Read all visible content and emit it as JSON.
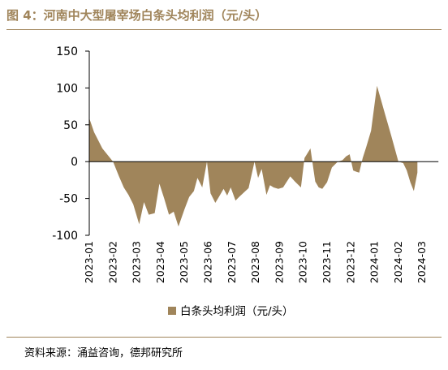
{
  "figure": {
    "label": "图 4：",
    "title": "河南中大型屠宰场白条头均利润（元/头）",
    "source": "资料来源：涌益咨询，德邦研究所"
  },
  "colors": {
    "area": "#a0855b",
    "title": "#a0855b",
    "axis": "#000000"
  },
  "chart_data": {
    "type": "area",
    "title": "河南中大型屠宰场白条头均利润（元/头）",
    "xlabel": "",
    "ylabel": "",
    "ylim": [
      -100,
      150
    ],
    "yticks": [
      150,
      100,
      50,
      0,
      -50,
      -100
    ],
    "categories": [
      "2023-01",
      "2023-02",
      "2023-03",
      "2023-04",
      "2023-05",
      "2023-06",
      "2023-07",
      "2023-08",
      "2023-09",
      "2023-10",
      "2023-11",
      "2023-12",
      "2024-01",
      "2024-02",
      "2024-03"
    ],
    "legend": {
      "position": "bottom",
      "entries": [
        "白条头均利润（元/头）"
      ]
    },
    "grid": false,
    "series": [
      {
        "name": "白条头均利润（元/头）",
        "color": "#a0855b",
        "x": [
          0,
          0.2,
          0.55,
          1,
          1.25,
          1.45,
          1.65,
          1.85,
          2.1,
          2.3,
          2.5,
          2.75,
          2.95,
          3.15,
          3.35,
          3.55,
          3.75,
          4.0,
          4.2,
          4.4,
          4.55,
          4.75,
          4.95,
          5.1,
          5.3,
          5.45,
          5.65,
          5.8,
          5.95,
          6.15,
          6.3,
          6.5,
          6.7,
          6.95,
          7.1,
          7.25,
          7.45,
          7.6,
          7.75,
          7.95,
          8.15,
          8.45,
          8.65,
          8.9,
          9.05,
          9.3,
          9.5,
          9.65,
          9.8,
          10.0,
          10.2,
          10.45,
          10.65,
          10.8,
          10.95,
          11.1,
          11.25,
          11.35,
          11.5,
          11.65,
          11.85,
          12.1,
          12.25,
          12.45,
          12.55,
          12.7,
          13.0,
          13.2,
          13.35,
          13.5,
          13.65,
          13.8
        ],
        "values": [
          59,
          40,
          18,
          0,
          -20,
          -35,
          -45,
          -58,
          -85,
          -55,
          -72,
          -70,
          -30,
          -50,
          -72,
          -68,
          -88,
          -65,
          -48,
          -40,
          -22,
          -35,
          0,
          -43,
          -56,
          -48,
          -37,
          -46,
          -35,
          -53,
          -48,
          -42,
          -36,
          0,
          -22,
          -10,
          -45,
          -32,
          -35,
          -37,
          -35,
          -20,
          -27,
          -35,
          5,
          18,
          -27,
          -35,
          -37,
          -28,
          -8,
          0,
          2,
          7,
          10,
          -12,
          -14,
          -15,
          5,
          20,
          42,
          103,
          86,
          63,
          52,
          35,
          0,
          -2,
          -12,
          -28,
          -40,
          -15
        ]
      }
    ]
  }
}
